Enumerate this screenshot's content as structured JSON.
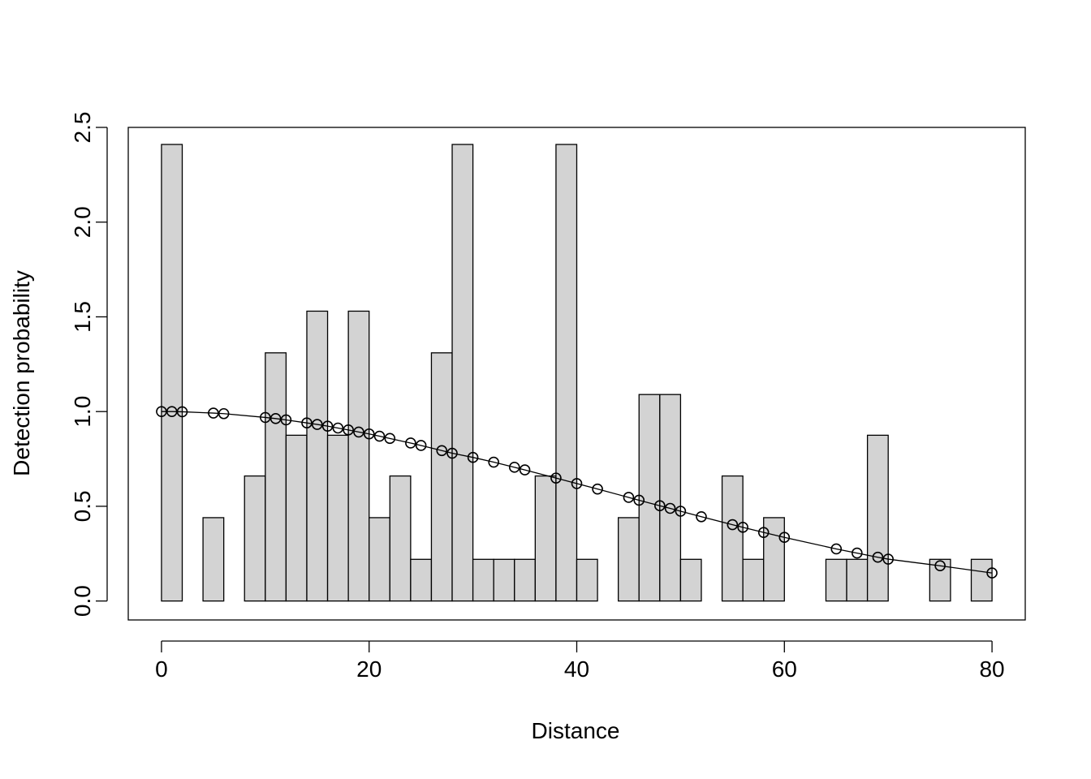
{
  "chart_data": {
    "type": "bar",
    "xlabel": "Distance",
    "ylabel": "Detection probability",
    "xlim": [
      -3.2,
      83.2
    ],
    "ylim": [
      -0.1,
      2.5
    ],
    "x_ticks": [
      0,
      20,
      40,
      60,
      80
    ],
    "y_ticks": [
      0.0,
      0.5,
      1.0,
      1.5,
      2.0,
      2.5
    ],
    "x_tick_labels": [
      "0",
      "20",
      "40",
      "60",
      "80"
    ],
    "y_tick_labels": [
      "0.0",
      "0.5",
      "1.0",
      "1.5",
      "2.0",
      "2.5"
    ],
    "grid": false,
    "legend": "none",
    "bar_fill": "#d3d3d3",
    "bar_stroke": "#000000",
    "histogram": {
      "bin_width": 2,
      "bins": [
        {
          "x0": 0,
          "x1": 2,
          "value": 2.41
        },
        {
          "x0": 4,
          "x1": 6,
          "value": 0.44
        },
        {
          "x0": 8,
          "x1": 10,
          "value": 0.66
        },
        {
          "x0": 10,
          "x1": 12,
          "value": 1.31
        },
        {
          "x0": 12,
          "x1": 14,
          "value": 0.875
        },
        {
          "x0": 14,
          "x1": 16,
          "value": 1.53
        },
        {
          "x0": 16,
          "x1": 18,
          "value": 0.875
        },
        {
          "x0": 18,
          "x1": 20,
          "value": 1.53
        },
        {
          "x0": 20,
          "x1": 22,
          "value": 0.44
        },
        {
          "x0": 22,
          "x1": 24,
          "value": 0.66
        },
        {
          "x0": 24,
          "x1": 26,
          "value": 0.22
        },
        {
          "x0": 26,
          "x1": 28,
          "value": 1.31
        },
        {
          "x0": 28,
          "x1": 30,
          "value": 2.41
        },
        {
          "x0": 30,
          "x1": 32,
          "value": 0.22
        },
        {
          "x0": 32,
          "x1": 34,
          "value": 0.22
        },
        {
          "x0": 34,
          "x1": 36,
          "value": 0.22
        },
        {
          "x0": 36,
          "x1": 38,
          "value": 0.66
        },
        {
          "x0": 38,
          "x1": 40,
          "value": 2.41
        },
        {
          "x0": 40,
          "x1": 42,
          "value": 0.22
        },
        {
          "x0": 44,
          "x1": 46,
          "value": 0.44
        },
        {
          "x0": 46,
          "x1": 48,
          "value": 1.09
        },
        {
          "x0": 48,
          "x1": 50,
          "value": 1.09
        },
        {
          "x0": 50,
          "x1": 52,
          "value": 0.22
        },
        {
          "x0": 54,
          "x1": 56,
          "value": 0.66
        },
        {
          "x0": 56,
          "x1": 58,
          "value": 0.22
        },
        {
          "x0": 58,
          "x1": 60,
          "value": 0.44
        },
        {
          "x0": 64,
          "x1": 66,
          "value": 0.22
        },
        {
          "x0": 66,
          "x1": 68,
          "value": 0.22
        },
        {
          "x0": 68,
          "x1": 70,
          "value": 0.875
        },
        {
          "x0": 74,
          "x1": 76,
          "value": 0.22
        },
        {
          "x0": 78,
          "x1": 80,
          "value": 0.22
        }
      ]
    },
    "curve": {
      "type": "line",
      "marker": "open-circle",
      "points": [
        [
          0,
          1.0
        ],
        [
          1,
          1.0
        ],
        [
          2,
          0.999
        ],
        [
          5,
          0.992
        ],
        [
          6,
          0.989
        ],
        [
          10,
          0.969
        ],
        [
          11,
          0.963
        ],
        [
          12,
          0.956
        ],
        [
          14,
          0.94
        ],
        [
          15,
          0.932
        ],
        [
          16,
          0.923
        ],
        [
          17,
          0.913
        ],
        [
          18,
          0.903
        ],
        [
          19,
          0.892
        ],
        [
          20,
          0.882
        ],
        [
          21,
          0.87
        ],
        [
          22,
          0.858
        ],
        [
          24,
          0.834
        ],
        [
          25,
          0.821
        ],
        [
          27,
          0.794
        ],
        [
          28,
          0.78
        ],
        [
          30,
          0.758
        ],
        [
          32,
          0.733
        ],
        [
          34,
          0.706
        ],
        [
          35,
          0.692
        ],
        [
          38,
          0.649
        ],
        [
          40,
          0.62
        ],
        [
          42,
          0.591
        ],
        [
          45,
          0.547
        ],
        [
          46,
          0.532
        ],
        [
          48,
          0.503
        ],
        [
          49,
          0.489
        ],
        [
          50,
          0.474
        ],
        [
          52,
          0.445
        ],
        [
          55,
          0.403
        ],
        [
          56,
          0.389
        ],
        [
          58,
          0.362
        ],
        [
          60,
          0.336
        ],
        [
          65,
          0.275
        ],
        [
          67,
          0.253
        ],
        [
          69,
          0.231
        ],
        [
          70,
          0.221
        ],
        [
          75,
          0.186
        ],
        [
          80,
          0.148
        ]
      ]
    }
  }
}
